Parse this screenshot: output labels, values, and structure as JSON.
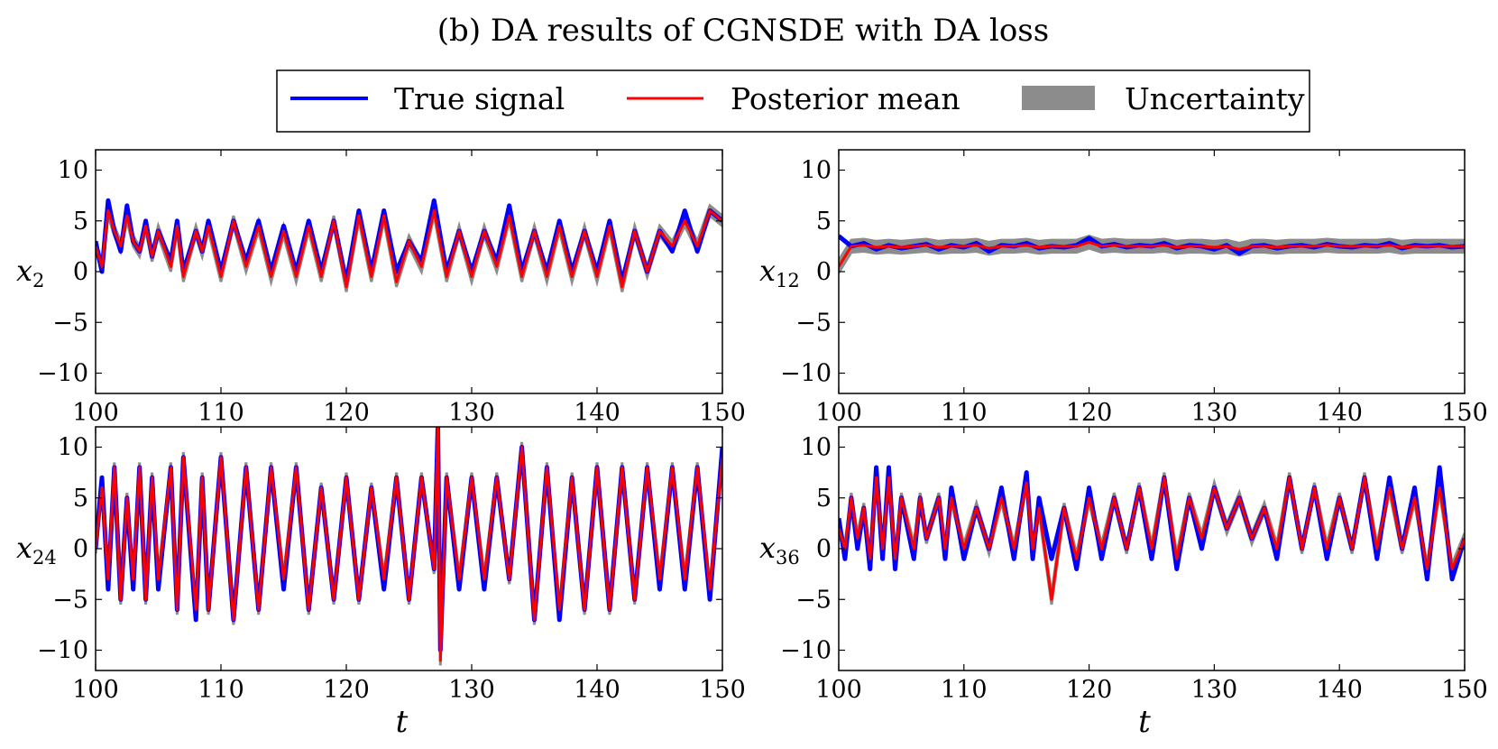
{
  "title": "(b) DA results of CGNSDE with DA loss",
  "legend": [
    {
      "label": "True signal",
      "kind": "line",
      "color": "#0000ff"
    },
    {
      "label": "Posterior mean",
      "kind": "line",
      "color": "#ff0000"
    },
    {
      "label": "Uncertainty",
      "kind": "patch",
      "color": "#8c8c8c"
    }
  ],
  "chart_data": [
    {
      "type": "line",
      "panel": "x2",
      "ylabel_var": "x",
      "ylabel_sub": "2",
      "xlabel": "",
      "xlim": [
        100,
        150
      ],
      "ylim": [
        -12,
        12
      ],
      "xticks": [
        100,
        110,
        120,
        130,
        140,
        150
      ],
      "yticks": [
        -10,
        -5,
        0,
        5,
        10
      ],
      "xtick_labels": [
        "100",
        "110",
        "120",
        "130",
        "140",
        "150"
      ],
      "ytick_labels": [
        "−10",
        "−5",
        "0",
        "5",
        "10"
      ],
      "series": [
        {
          "name": "True signal",
          "t": [
            100,
            100.5,
            101,
            101.5,
            102,
            102.5,
            103,
            103.5,
            104,
            104.5,
            105,
            106,
            106.5,
            107,
            108,
            108.5,
            109,
            110,
            111,
            112,
            113,
            114,
            115,
            116,
            117,
            118,
            119,
            120,
            121,
            122,
            123,
            124,
            125,
            126,
            127,
            128,
            129,
            130,
            131,
            132,
            133,
            134,
            135,
            136,
            137,
            138,
            139,
            140,
            141,
            142,
            143,
            144,
            145,
            146,
            147,
            148,
            149,
            150
          ],
          "values": [
            3,
            0,
            7,
            4,
            2,
            6.5,
            3,
            2,
            5,
            1.5,
            4,
            1,
            5,
            0,
            4,
            2,
            5,
            0,
            5,
            1,
            5,
            0,
            4.5,
            0,
            5,
            0,
            5,
            -1,
            6,
            0,
            6,
            0,
            3,
            1,
            7,
            0,
            4,
            0,
            4,
            1,
            6.5,
            0,
            4,
            0,
            5,
            0,
            4,
            0,
            5,
            -1,
            4,
            0,
            4,
            2,
            6,
            2,
            6,
            5
          ]
        },
        {
          "name": "Posterior mean",
          "t": [
            100,
            100.5,
            101,
            101.5,
            102,
            102.5,
            103,
            103.5,
            104,
            104.5,
            105,
            106,
            106.5,
            107,
            108,
            108.5,
            109,
            110,
            111,
            112,
            113,
            114,
            115,
            116,
            117,
            118,
            119,
            120,
            121,
            122,
            123,
            124,
            125,
            126,
            127,
            128,
            129,
            130,
            131,
            132,
            133,
            134,
            135,
            136,
            137,
            138,
            139,
            140,
            141,
            142,
            143,
            144,
            145,
            146,
            147,
            148,
            149,
            150
          ],
          "values": [
            2.5,
            0.5,
            6,
            4,
            2.5,
            5.5,
            3,
            2,
            4.5,
            1.5,
            4,
            0.5,
            4.5,
            -0.5,
            4,
            2,
            4.5,
            -0.5,
            5,
            0.5,
            4.5,
            -0.5,
            4,
            -0.5,
            4.5,
            -0.5,
            5,
            -1.5,
            5.5,
            -0.5,
            5.5,
            -1,
            3,
            0.5,
            6,
            -0.5,
            4,
            -0.5,
            4,
            0.5,
            5.5,
            -0.5,
            4,
            -0.5,
            4.5,
            -0.5,
            4,
            -0.5,
            4.5,
            -1.5,
            4,
            0,
            4,
            2.5,
            5,
            2.5,
            6,
            5
          ]
        }
      ],
      "uncertainty_halfwidth": 0.5
    },
    {
      "type": "line",
      "panel": "x12",
      "ylabel_var": "x",
      "ylabel_sub": "12",
      "xlabel": "",
      "xlim": [
        100,
        150
      ],
      "ylim": [
        -12,
        12
      ],
      "xticks": [
        100,
        110,
        120,
        130,
        140,
        150
      ],
      "yticks": [
        -10,
        -5,
        0,
        5,
        10
      ],
      "xtick_labels": [
        "100",
        "110",
        "120",
        "130",
        "140",
        "150"
      ],
      "ytick_labels": [
        "−10",
        "−5",
        "0",
        "5",
        "10"
      ],
      "series": [
        {
          "name": "True signal",
          "t": [
            100,
            101,
            102,
            103,
            104,
            105,
            106,
            107,
            108,
            109,
            110,
            111,
            112,
            113,
            114,
            115,
            116,
            117,
            118,
            119,
            120,
            121,
            122,
            123,
            124,
            125,
            126,
            127,
            128,
            129,
            130,
            131,
            132,
            133,
            134,
            135,
            136,
            137,
            138,
            139,
            140,
            141,
            142,
            143,
            144,
            145,
            146,
            147,
            148,
            149,
            150
          ],
          "values": [
            3.5,
            2.5,
            2.8,
            2.2,
            2.6,
            2.3,
            2.5,
            2.7,
            2.2,
            2.6,
            2.4,
            2.8,
            2,
            2.6,
            2.5,
            2.8,
            2.3,
            2.5,
            2.4,
            2.6,
            3.3,
            2.5,
            2.7,
            2.4,
            2.6,
            2.5,
            2.8,
            2.3,
            2.6,
            2.5,
            2.2,
            2.6,
            1.8,
            2.5,
            2.6,
            2.3,
            2.5,
            2.6,
            2.4,
            2.7,
            2.5,
            2.4,
            2.6,
            2.5,
            2.8,
            2.3,
            2.6,
            2.5,
            2.6,
            2.4,
            2.5
          ]
        },
        {
          "name": "Posterior mean",
          "t": [
            100,
            101,
            102,
            103,
            104,
            105,
            106,
            107,
            108,
            109,
            110,
            111,
            112,
            113,
            114,
            115,
            116,
            117,
            118,
            119,
            120,
            121,
            122,
            123,
            124,
            125,
            126,
            127,
            128,
            129,
            130,
            131,
            132,
            133,
            134,
            135,
            136,
            137,
            138,
            139,
            140,
            141,
            142,
            143,
            144,
            145,
            146,
            147,
            148,
            149,
            150
          ],
          "values": [
            0.5,
            2.5,
            2.6,
            2.4,
            2.5,
            2.4,
            2.5,
            2.6,
            2.4,
            2.5,
            2.5,
            2.6,
            2.3,
            2.5,
            2.5,
            2.6,
            2.4,
            2.5,
            2.5,
            2.5,
            2.9,
            2.5,
            2.6,
            2.5,
            2.5,
            2.5,
            2.6,
            2.4,
            2.5,
            2.5,
            2.4,
            2.5,
            2.2,
            2.5,
            2.5,
            2.4,
            2.5,
            2.5,
            2.5,
            2.6,
            2.5,
            2.5,
            2.5,
            2.5,
            2.6,
            2.4,
            2.5,
            2.5,
            2.5,
            2.5,
            2.5
          ]
        }
      ],
      "uncertainty_halfwidth": 0.6
    },
    {
      "type": "line",
      "panel": "x24",
      "ylabel_var": "x",
      "ylabel_sub": "24",
      "xlabel": "t",
      "xlim": [
        100,
        150
      ],
      "ylim": [
        -12,
        12
      ],
      "xticks": [
        100,
        110,
        120,
        130,
        140,
        150
      ],
      "yticks": [
        -10,
        -5,
        0,
        5,
        10
      ],
      "xtick_labels": [
        "100",
        "110",
        "120",
        "130",
        "140",
        "150"
      ],
      "ytick_labels": [
        "−10",
        "−5",
        "0",
        "5",
        "10"
      ],
      "series": [
        {
          "name": "True signal",
          "t": [
            100,
            100.5,
            101,
            101.5,
            102,
            102.5,
            103,
            103.5,
            104,
            104.5,
            105,
            106,
            106.5,
            107,
            108,
            108.5,
            109,
            110,
            111,
            112,
            113,
            114,
            115,
            116,
            117,
            118,
            119,
            120,
            121,
            122,
            123,
            124,
            125,
            126,
            127,
            127.3,
            127.5,
            128,
            129,
            130,
            131,
            132,
            133,
            134,
            135,
            136,
            137,
            138,
            139,
            140,
            141,
            142,
            143,
            144,
            145,
            146,
            147,
            148,
            149,
            150
          ],
          "values": [
            0,
            7,
            -4,
            8,
            -5,
            5,
            -4,
            8,
            -5,
            7,
            -4,
            8,
            -6,
            9,
            -7,
            7,
            -6,
            9,
            -7,
            8,
            -6,
            8,
            -4,
            8,
            -6,
            6,
            -5,
            7,
            -5,
            6,
            -4,
            7,
            -5,
            7,
            -2,
            12,
            -10,
            7,
            -4,
            7,
            -4,
            7,
            -3,
            10,
            -7,
            8,
            -7,
            7,
            -6,
            8,
            -6,
            8,
            -5,
            8,
            -4,
            8,
            -4,
            8,
            -5,
            10
          ]
        },
        {
          "name": "Posterior mean",
          "t": [
            100,
            100.5,
            101,
            101.5,
            102,
            102.5,
            103,
            103.5,
            104,
            104.5,
            105,
            106,
            106.5,
            107,
            108,
            108.5,
            109,
            110,
            111,
            112,
            113,
            114,
            115,
            116,
            117,
            118,
            119,
            120,
            121,
            122,
            123,
            124,
            125,
            126,
            127,
            127.3,
            127.5,
            128,
            129,
            130,
            131,
            132,
            133,
            134,
            135,
            136,
            137,
            138,
            139,
            140,
            141,
            142,
            143,
            144,
            145,
            146,
            147,
            148,
            149,
            150
          ],
          "values": [
            0,
            6,
            -3,
            8,
            -5,
            5,
            -3,
            8,
            -5,
            7,
            -3,
            8,
            -6,
            9,
            -6,
            7,
            -6,
            9,
            -7,
            8,
            -6,
            8,
            -3,
            8,
            -6,
            6,
            -5,
            7,
            -5,
            6,
            -3,
            7,
            -5,
            7,
            -2,
            12,
            -11,
            7,
            -3,
            7,
            -3,
            7,
            -3,
            10,
            -7,
            8,
            -6,
            7,
            -6,
            8,
            -6,
            8,
            -5,
            8,
            -3,
            8,
            -3,
            8,
            -4,
            9
          ]
        }
      ],
      "uncertainty_halfwidth": 0.5
    },
    {
      "type": "line",
      "panel": "x36",
      "ylabel_var": "x",
      "ylabel_sub": "36",
      "xlabel": "t",
      "xlim": [
        100,
        150
      ],
      "ylim": [
        -12,
        12
      ],
      "xticks": [
        100,
        110,
        120,
        130,
        140,
        150
      ],
      "yticks": [
        -10,
        -5,
        0,
        5,
        10
      ],
      "xtick_labels": [
        "100",
        "110",
        "120",
        "130",
        "140",
        "150"
      ],
      "ytick_labels": [
        "−10",
        "−5",
        "0",
        "5",
        "10"
      ],
      "series": [
        {
          "name": "True signal",
          "t": [
            100,
            100.5,
            101,
            101.5,
            102,
            102.5,
            103,
            103.5,
            104,
            104.5,
            105,
            106,
            106.5,
            107,
            108,
            108.5,
            109,
            110,
            111,
            112,
            113,
            114,
            115,
            115.5,
            116,
            117,
            118,
            119,
            120,
            121,
            122,
            123,
            124,
            125,
            126,
            127,
            128,
            129,
            130,
            131,
            132,
            133,
            134,
            135,
            136,
            137,
            138,
            139,
            140,
            141,
            142,
            143,
            144,
            145,
            146,
            147,
            148,
            149,
            150
          ],
          "values": [
            3,
            -1,
            5,
            0,
            4,
            -2,
            8,
            -1,
            8,
            -2,
            5,
            -1,
            5,
            1,
            5,
            -1,
            6,
            -1,
            4,
            0,
            6,
            -1,
            7.5,
            -1,
            5,
            -1,
            4,
            -2,
            6,
            -1,
            5,
            0,
            6,
            -1,
            7,
            -2,
            5,
            0,
            6,
            2,
            5,
            1,
            4,
            -1,
            7,
            0,
            6,
            -1,
            5,
            0,
            7,
            -1,
            7,
            0,
            6,
            -3,
            8,
            -3,
            1
          ]
        },
        {
          "name": "Posterior mean",
          "t": [
            100,
            100.5,
            101,
            101.5,
            102,
            102.5,
            103,
            103.5,
            104,
            104.5,
            105,
            106,
            106.5,
            107,
            108,
            108.5,
            109,
            110,
            111,
            112,
            113,
            114,
            115,
            115.5,
            116,
            117,
            118,
            119,
            120,
            121,
            122,
            123,
            124,
            125,
            126,
            127,
            128,
            129,
            130,
            131,
            132,
            133,
            134,
            135,
            136,
            137,
            138,
            139,
            140,
            141,
            142,
            143,
            144,
            145,
            146,
            147,
            148,
            149,
            150
          ],
          "values": [
            2,
            0,
            5,
            1,
            4,
            -1,
            7,
            0,
            7,
            -1,
            5,
            0,
            5,
            1,
            5,
            0,
            5,
            0,
            4,
            0,
            5,
            0,
            6.5,
            0,
            4,
            -5,
            4,
            -1,
            5,
            0,
            5,
            0,
            6,
            0,
            7,
            -1,
            5,
            1,
            6,
            2,
            5,
            1,
            4,
            0,
            7,
            0,
            6,
            0,
            5,
            0,
            7,
            0,
            6,
            0,
            5,
            -2,
            6,
            -2,
            1
          ]
        }
      ],
      "uncertainty_halfwidth": 0.5
    }
  ]
}
